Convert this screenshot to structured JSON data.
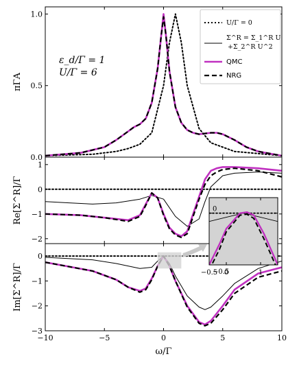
{
  "chart_data": [
    {
      "type": "line",
      "panel": "top",
      "ylabel": "πΓA",
      "xlim": [
        -10,
        10
      ],
      "ylim": [
        0,
        1.05
      ],
      "yticks": [
        "0.0",
        "0.5",
        "1.0"
      ],
      "yticks_values": [
        0,
        0.5,
        1.0
      ],
      "annotation": [
        "ε_d/Γ = 1",
        "U/Γ = 6"
      ],
      "legend_position": "top-right",
      "legend": [
        {
          "label": "U/Γ = 0",
          "style": "dotted",
          "color": "#000000"
        },
        {
          "label": "Σ^R = Σ_1^R U",
          "label2": "+Σ_2^R U^2",
          "style": "solid-thin",
          "color": "#000000"
        },
        {
          "label": "QMC",
          "style": "solid-thick",
          "color": "#c030c0"
        },
        {
          "label": "NRG",
          "style": "dashed-thick",
          "color": "#000000"
        }
      ],
      "series": [
        {
          "name": "U/Γ = 0",
          "x": [
            -10,
            -6,
            -4,
            -3,
            -2,
            -1,
            0,
            0.5,
            1,
            1.5,
            2,
            3,
            4,
            6,
            10
          ],
          "y": [
            0.01,
            0.02,
            0.04,
            0.06,
            0.09,
            0.17,
            0.5,
            0.8,
            1.0,
            0.8,
            0.5,
            0.2,
            0.1,
            0.04,
            0.01
          ]
        },
        {
          "name": "Σ^R = Σ_1^R U +Σ_2^R U^2",
          "x": [
            -10,
            -7,
            -5,
            -4,
            -3,
            -2.5,
            -2,
            -1.5,
            -1,
            -0.5,
            -0.2,
            0,
            0.2,
            0.5,
            1,
            1.5,
            2,
            2.5,
            3,
            4,
            4.5,
            5,
            6,
            7,
            8,
            10
          ],
          "y": [
            0.01,
            0.03,
            0.07,
            0.12,
            0.18,
            0.21,
            0.23,
            0.27,
            0.38,
            0.62,
            0.85,
            1.0,
            0.85,
            0.6,
            0.35,
            0.24,
            0.19,
            0.17,
            0.16,
            0.17,
            0.17,
            0.16,
            0.12,
            0.07,
            0.04,
            0.01
          ]
        },
        {
          "name": "QMC",
          "x": [
            -10,
            -7,
            -5,
            -4,
            -3,
            -2.5,
            -2,
            -1.5,
            -1,
            -0.5,
            -0.2,
            0,
            0.2,
            0.5,
            1,
            1.5,
            2,
            2.5,
            3,
            4,
            4.5,
            5,
            6,
            7,
            8,
            10
          ],
          "y": [
            0.01,
            0.03,
            0.07,
            0.12,
            0.18,
            0.21,
            0.23,
            0.27,
            0.38,
            0.62,
            0.85,
            1.0,
            0.85,
            0.6,
            0.35,
            0.24,
            0.19,
            0.17,
            0.16,
            0.17,
            0.17,
            0.16,
            0.12,
            0.07,
            0.04,
            0.01
          ]
        },
        {
          "name": "NRG",
          "x": [
            -10,
            -7,
            -5,
            -4,
            -3,
            -2.5,
            -2,
            -1.5,
            -1,
            -0.5,
            -0.2,
            0,
            0.2,
            0.5,
            1,
            1.5,
            2,
            2.5,
            3,
            4,
            4.5,
            5,
            6,
            7,
            8,
            10
          ],
          "y": [
            0.01,
            0.03,
            0.07,
            0.12,
            0.18,
            0.21,
            0.23,
            0.27,
            0.38,
            0.62,
            0.85,
            0.98,
            0.85,
            0.6,
            0.35,
            0.24,
            0.19,
            0.17,
            0.16,
            0.17,
            0.17,
            0.16,
            0.12,
            0.07,
            0.04,
            0.01
          ]
        }
      ]
    },
    {
      "type": "line",
      "panel": "middle",
      "ylabel": "Re[Σ^R]/Γ",
      "xlim": [
        -10,
        10
      ],
      "ylim": [
        -2.2,
        1.3
      ],
      "yticks": [
        "−2",
        "−1",
        "0",
        "1"
      ],
      "yticks_values": [
        -2,
        -1,
        0,
        1
      ],
      "series": [
        {
          "name": "U/Γ = 0",
          "x": [
            -10,
            10
          ],
          "y": [
            0,
            0
          ]
        },
        {
          "name": "Σ^R = Σ_1^R U +Σ_2^R U^2",
          "x": [
            -10,
            -8,
            -6,
            -4,
            -2,
            -1,
            0,
            1,
            2,
            3,
            3.5,
            4,
            5,
            6,
            8,
            10
          ],
          "y": [
            -0.5,
            -0.55,
            -0.6,
            -0.55,
            -0.4,
            -0.25,
            -0.4,
            -1.1,
            -1.5,
            -1.2,
            -0.5,
            0.1,
            0.55,
            0.65,
            0.7,
            0.65
          ]
        },
        {
          "name": "QMC",
          "x": [
            -10,
            -7,
            -5,
            -3,
            -2,
            -1.5,
            -1,
            -0.5,
            0,
            0.5,
            1,
            1.5,
            2,
            2.5,
            3,
            3.5,
            4,
            4.5,
            5,
            6,
            8,
            10
          ],
          "y": [
            -1.0,
            -1.05,
            -1.15,
            -1.25,
            -1.05,
            -0.6,
            -0.15,
            -0.35,
            -1.0,
            -1.55,
            -1.8,
            -1.9,
            -1.7,
            -1.0,
            -0.3,
            0.4,
            0.75,
            0.85,
            0.9,
            0.9,
            0.85,
            0.75
          ]
        },
        {
          "name": "NRG",
          "x": [
            -10,
            -7,
            -5,
            -3,
            -2,
            -1.5,
            -1,
            -0.5,
            0,
            0.5,
            1,
            1.5,
            2,
            2.5,
            3,
            3.5,
            4,
            4.5,
            5,
            6,
            8,
            10
          ],
          "y": [
            -1.0,
            -1.05,
            -1.15,
            -1.3,
            -1.1,
            -0.65,
            -0.15,
            -0.35,
            -1.05,
            -1.6,
            -1.85,
            -1.95,
            -1.8,
            -1.1,
            -0.4,
            0.2,
            0.55,
            0.7,
            0.8,
            0.85,
            0.75,
            0.5
          ]
        }
      ]
    },
    {
      "type": "line",
      "panel": "bottom",
      "ylabel": "Im[Σ^R]/Γ",
      "xlabel": "ω/Γ",
      "xlim": [
        -10,
        10
      ],
      "ylim": [
        -3.0,
        0.5
      ],
      "xticks": [
        "−10",
        "−5",
        "0",
        "5",
        "10"
      ],
      "xticks_values": [
        -10,
        -5,
        0,
        5,
        10
      ],
      "yticks": [
        "−3",
        "−2",
        "−1",
        "0"
      ],
      "yticks_values": [
        -3,
        -2,
        -1,
        0
      ],
      "series": [
        {
          "name": "U/Γ = 0",
          "x": [
            -10,
            10
          ],
          "y": [
            0,
            0
          ]
        },
        {
          "name": "Σ^R = Σ_1^R U +Σ_2^R U^2",
          "x": [
            -10,
            -6,
            -4,
            -2,
            -1,
            -0.5,
            0,
            0.5,
            1,
            2,
            3,
            3.5,
            4,
            5,
            6,
            8,
            10
          ],
          "y": [
            -0.05,
            -0.15,
            -0.3,
            -0.5,
            -0.45,
            -0.2,
            0,
            -0.3,
            -0.8,
            -1.6,
            -2.05,
            -2.15,
            -2.05,
            -1.6,
            -1.1,
            -0.5,
            -0.2
          ]
        },
        {
          "name": "QMC",
          "x": [
            -10,
            -6,
            -4,
            -3,
            -2,
            -1.5,
            -1,
            -0.5,
            0,
            0.5,
            1,
            2,
            3,
            3.5,
            4,
            5,
            6,
            8,
            10
          ],
          "y": [
            -0.25,
            -0.6,
            -0.95,
            -1.25,
            -1.4,
            -1.3,
            -0.9,
            -0.4,
            0,
            -0.4,
            -1.0,
            -2.0,
            -2.65,
            -2.75,
            -2.6,
            -2.0,
            -1.35,
            -0.7,
            -0.45
          ]
        },
        {
          "name": "NRG",
          "x": [
            -10,
            -6,
            -4,
            -3,
            -2,
            -1.5,
            -1,
            -0.5,
            0,
            0.5,
            1,
            2,
            3,
            3.5,
            4,
            5,
            6,
            8,
            10
          ],
          "y": [
            -0.25,
            -0.6,
            -0.95,
            -1.25,
            -1.45,
            -1.35,
            -0.95,
            -0.4,
            0,
            -0.4,
            -1.0,
            -2.05,
            -2.7,
            -2.8,
            -2.7,
            -2.15,
            -1.5,
            -0.85,
            -0.6
          ]
        }
      ]
    },
    {
      "type": "line",
      "panel": "inset",
      "xlim": [
        -0.5,
        1.5
      ],
      "ylim": [
        -0.5,
        0.15
      ],
      "xticks": [
        "−0.5",
        "0",
        "1"
      ],
      "xticks_values": [
        -0.5,
        0,
        1
      ],
      "yticks": [
        "−0.5",
        "0"
      ],
      "yticks_values": [
        -0.5,
        0
      ],
      "background": "#d3d3d3",
      "series": [
        {
          "name": "U/Γ = 0",
          "x": [
            -0.5,
            1.5
          ],
          "y": [
            0,
            0
          ]
        },
        {
          "name": "Σ^R = Σ_1^R U +Σ_2^R U^2",
          "x": [
            -0.5,
            0,
            0.5,
            1,
            1.5
          ],
          "y": [
            -0.08,
            -0.04,
            0,
            -0.04,
            -0.08
          ]
        },
        {
          "name": "QMC",
          "x": [
            -0.5,
            -0.2,
            0,
            0.4,
            0.6,
            0.8,
            1.1,
            1.5
          ],
          "y": [
            -0.5,
            -0.3,
            -0.15,
            0,
            0.01,
            -0.02,
            -0.2,
            -0.5
          ]
        },
        {
          "name": "NRG",
          "x": [
            -0.5,
            -0.2,
            0,
            0.4,
            0.6,
            0.8,
            1.1,
            1.5
          ],
          "y": [
            -0.55,
            -0.35,
            -0.18,
            -0.02,
            -0.01,
            -0.05,
            -0.25,
            -0.55
          ]
        }
      ]
    }
  ]
}
